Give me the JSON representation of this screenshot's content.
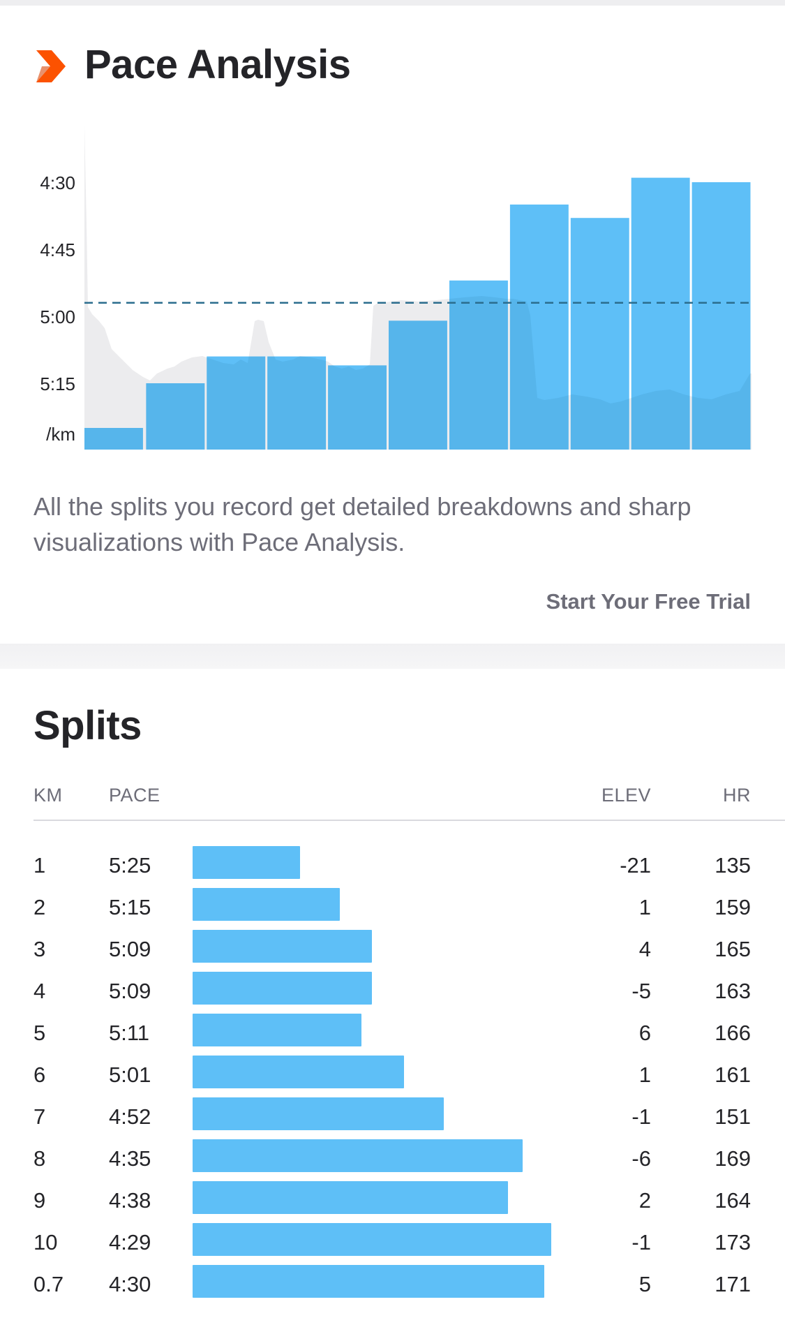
{
  "colors": {
    "accent": "#fc5200",
    "bar": "#5ebff7",
    "area": "#ececee",
    "avg_line": "#2b6d8e",
    "muted": "#6d6d78"
  },
  "pace_analysis": {
    "icon": "strava-chevron-icon",
    "title": "Pace Analysis",
    "description": "All the splits you record get detailed breakdowns and sharp visualizations with Pace Analysis.",
    "cta": "Start Your Free Trial"
  },
  "chart_data": {
    "type": "bar",
    "y_ticks": [
      "4:30",
      "4:45",
      "5:00",
      "5:15"
    ],
    "y_unit": "/km",
    "y_axis_inverted": true,
    "ylim_seconds_per_km": [
      257,
      333
    ],
    "average_pace": "4:57",
    "categories": [
      "1",
      "2",
      "3",
      "4",
      "5",
      "6",
      "7",
      "8",
      "9",
      "10",
      "0.7"
    ],
    "values": [
      "5:25",
      "5:15",
      "5:09",
      "5:09",
      "5:11",
      "5:01",
      "4:52",
      "4:35",
      "4:38",
      "4:29",
      "4:30"
    ],
    "values_seconds_per_km": [
      325,
      315,
      309,
      309,
      311,
      301,
      292,
      275,
      278,
      269,
      270
    ]
  },
  "splits": {
    "title": "Splits",
    "headers": {
      "km": "KM",
      "pace": "PACE",
      "elev": "ELEV",
      "hr": "HR"
    },
    "rows": [
      {
        "km": "1",
        "pace": "5:25",
        "pace_fraction": 0.3,
        "elev": "-21",
        "hr": "135"
      },
      {
        "km": "2",
        "pace": "5:15",
        "pace_fraction": 0.41,
        "elev": "1",
        "hr": "159"
      },
      {
        "km": "3",
        "pace": "5:09",
        "pace_fraction": 0.5,
        "elev": "4",
        "hr": "165"
      },
      {
        "km": "4",
        "pace": "5:09",
        "pace_fraction": 0.5,
        "elev": "-5",
        "hr": "163"
      },
      {
        "km": "5",
        "pace": "5:11",
        "pace_fraction": 0.47,
        "elev": "6",
        "hr": "166"
      },
      {
        "km": "6",
        "pace": "5:01",
        "pace_fraction": 0.59,
        "elev": "1",
        "hr": "161"
      },
      {
        "km": "7",
        "pace": "4:52",
        "pace_fraction": 0.7,
        "elev": "-1",
        "hr": "151"
      },
      {
        "km": "8",
        "pace": "4:35",
        "pace_fraction": 0.92,
        "elev": "-6",
        "hr": "169"
      },
      {
        "km": "9",
        "pace": "4:38",
        "pace_fraction": 0.88,
        "elev": "2",
        "hr": "164"
      },
      {
        "km": "10",
        "pace": "4:29",
        "pace_fraction": 1.0,
        "elev": "-1",
        "hr": "173"
      },
      {
        "km": "0.7",
        "pace": "4:30",
        "pace_fraction": 0.98,
        "elev": "5",
        "hr": "171"
      }
    ]
  }
}
